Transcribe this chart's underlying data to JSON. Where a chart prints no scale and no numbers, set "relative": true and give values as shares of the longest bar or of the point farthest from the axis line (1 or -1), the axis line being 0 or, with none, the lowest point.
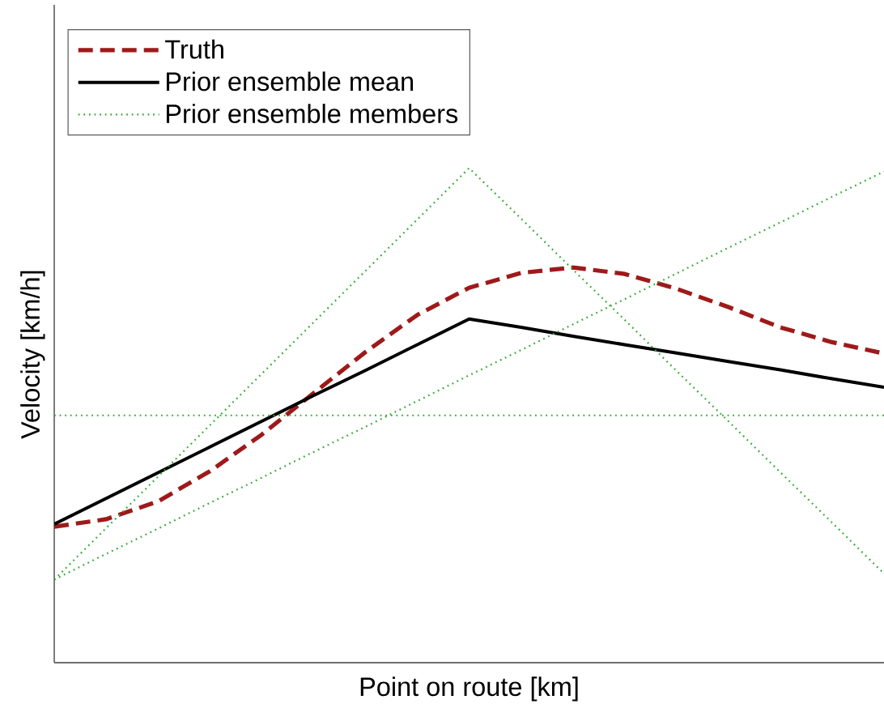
{
  "chart_data": {
    "type": "line",
    "xlabel": "Point on route [km]",
    "ylabel": "Velocity [km/h]",
    "relative": true,
    "legend": "top left",
    "categories": [
      null,
      null,
      null,
      null,
      null,
      null,
      null,
      null,
      null,
      null,
      null,
      null,
      null,
      null,
      null,
      null,
      null
    ],
    "series": [
      {
        "name": "Truth",
        "color": "#9e1a1a",
        "line_style": "dashed",
        "values": [
          0.275,
          0.29,
          0.326,
          0.387,
          0.461,
          0.545,
          0.628,
          0.703,
          0.758,
          0.788,
          0.799,
          0.786,
          0.756,
          0.719,
          0.678,
          0.648,
          0.625
        ]
      },
      {
        "name": "Prior ensemble mean",
        "color": "#000000",
        "line_style": "solid",
        "values": [
          0.28,
          0.332,
          0.384,
          0.436,
          0.488,
          0.54,
          0.591,
          0.643,
          0.695,
          0.678,
          0.66,
          0.643,
          0.626,
          0.609,
          0.592,
          0.574,
          0.557
        ]
      },
      {
        "name": "Prior ensemble members",
        "color": "#33aa33",
        "line_style": "dotted",
        "values": [
          0.168,
          0.272,
          0.376,
          0.48,
          0.584,
          0.688,
          0.792,
          0.896,
          1.0,
          0.898,
          0.795,
          0.693,
          0.59,
          0.488,
          0.385,
          0.283,
          0.18
        ]
      },
      {
        "color": "#33aa33",
        "line_style": "dotted",
        "values": [
          0.5,
          0.5,
          0.5,
          0.5,
          0.5,
          0.5,
          0.5,
          0.5,
          0.5,
          0.5,
          0.5,
          0.5,
          0.5,
          0.5,
          0.5,
          0.5,
          0.5
        ]
      },
      {
        "color": "#33aa33",
        "line_style": "dotted",
        "values": [
          0.168,
          0.22,
          0.271,
          0.323,
          0.374,
          0.426,
          0.477,
          0.529,
          0.581,
          0.632,
          0.684,
          0.735,
          0.787,
          0.839,
          0.89,
          0.942,
          0.993
        ]
      }
    ]
  }
}
